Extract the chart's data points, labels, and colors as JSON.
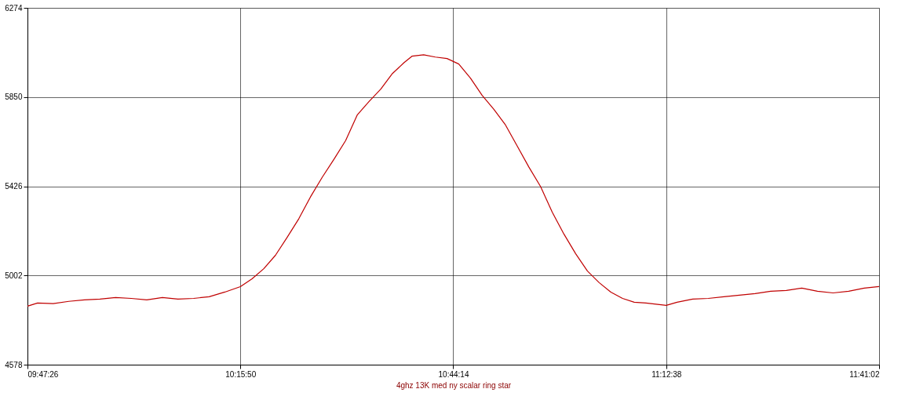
{
  "chart_data": {
    "type": "line",
    "xlabel": "4ghz 13K med ny scalar ring star",
    "xlim": [
      9.790556,
      11.683889
    ],
    "ylim": [
      4578,
      6274
    ],
    "xticks": [
      {
        "value": 9.790556,
        "label": "09:47:26"
      },
      {
        "value": 10.263889,
        "label": "10:15:50"
      },
      {
        "value": 10.737222,
        "label": "10:44:14"
      },
      {
        "value": 11.210556,
        "label": "11:12:38"
      },
      {
        "value": 11.683889,
        "label": "11:41:02"
      }
    ],
    "yticks": [
      4578,
      5002,
      5426,
      5850,
      6274
    ],
    "grid": true,
    "marker": "none",
    "line_style": "solid",
    "series": [
      {
        "color": "#c00000",
        "x": [
          9.7906,
          9.8131,
          9.8478,
          9.8825,
          9.9171,
          9.9518,
          9.9865,
          10.0212,
          10.0558,
          10.0905,
          10.1252,
          10.1599,
          10.1945,
          10.2292,
          10.2639,
          10.2899,
          10.3159,
          10.3419,
          10.3679,
          10.3939,
          10.4199,
          10.4459,
          10.4719,
          10.4979,
          10.524,
          10.55,
          10.576,
          10.602,
          10.628,
          10.6453,
          10.6713,
          10.6973,
          10.7233,
          10.7494,
          10.7754,
          10.8014,
          10.8274,
          10.8534,
          10.8794,
          10.9054,
          10.9314,
          10.9574,
          10.9834,
          11.0094,
          11.0355,
          11.0615,
          11.0875,
          11.1135,
          11.1395,
          11.1655,
          11.2106,
          11.2348,
          11.2695,
          11.3042,
          11.3388,
          11.3735,
          11.4082,
          11.4429,
          11.4775,
          11.5122,
          11.5469,
          11.5816,
          11.6162,
          11.6509,
          11.6838
        ],
        "values": [
          4856,
          4871,
          4868,
          4879,
          4886,
          4890,
          4897,
          4893,
          4886,
          4897,
          4890,
          4893,
          4901,
          4923,
          4949,
          4986,
          5034,
          5098,
          5183,
          5272,
          5376,
          5469,
          5554,
          5643,
          5766,
          5829,
          5888,
          5962,
          6014,
          6044,
          6051,
          6040,
          6033,
          6007,
          5940,
          5858,
          5792,
          5717,
          5617,
          5517,
          5424,
          5302,
          5198,
          5105,
          5023,
          4968,
          4923,
          4893,
          4875,
          4871,
          4860,
          4875,
          4890,
          4893,
          4901,
          4908,
          4916,
          4927,
          4931,
          4942,
          4927,
          4919,
          4927,
          4942,
          4949
        ]
      }
    ]
  }
}
